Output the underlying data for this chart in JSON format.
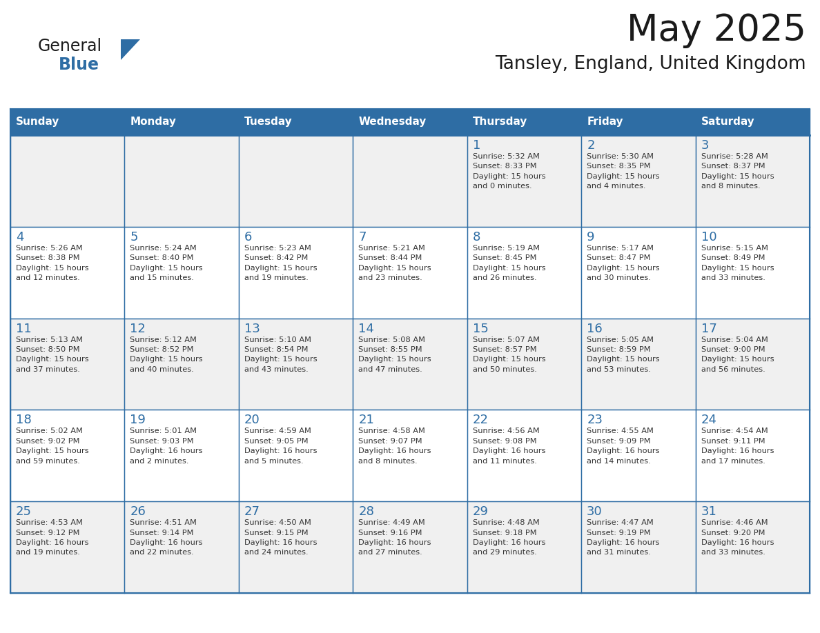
{
  "title": "May 2025",
  "subtitle": "Tansley, England, United Kingdom",
  "days_of_week": [
    "Sunday",
    "Monday",
    "Tuesday",
    "Wednesday",
    "Thursday",
    "Friday",
    "Saturday"
  ],
  "header_bg": "#2E6DA4",
  "header_text_color": "#FFFFFF",
  "cell_bg_odd": "#F0F0F0",
  "cell_bg_even": "#FFFFFF",
  "cell_text_color": "#333333",
  "day_num_color": "#2E6DA4",
  "grid_color": "#2E6DA4",
  "logo_general_color": "#1a1a1a",
  "logo_blue_color": "#2E6DA4",
  "title_color": "#1a1a1a",
  "subtitle_color": "#1a1a1a",
  "weeks": [
    [
      {
        "day": null,
        "info": null
      },
      {
        "day": null,
        "info": null
      },
      {
        "day": null,
        "info": null
      },
      {
        "day": null,
        "info": null
      },
      {
        "day": 1,
        "info": "Sunrise: 5:32 AM\nSunset: 8:33 PM\nDaylight: 15 hours\nand 0 minutes."
      },
      {
        "day": 2,
        "info": "Sunrise: 5:30 AM\nSunset: 8:35 PM\nDaylight: 15 hours\nand 4 minutes."
      },
      {
        "day": 3,
        "info": "Sunrise: 5:28 AM\nSunset: 8:37 PM\nDaylight: 15 hours\nand 8 minutes."
      }
    ],
    [
      {
        "day": 4,
        "info": "Sunrise: 5:26 AM\nSunset: 8:38 PM\nDaylight: 15 hours\nand 12 minutes."
      },
      {
        "day": 5,
        "info": "Sunrise: 5:24 AM\nSunset: 8:40 PM\nDaylight: 15 hours\nand 15 minutes."
      },
      {
        "day": 6,
        "info": "Sunrise: 5:23 AM\nSunset: 8:42 PM\nDaylight: 15 hours\nand 19 minutes."
      },
      {
        "day": 7,
        "info": "Sunrise: 5:21 AM\nSunset: 8:44 PM\nDaylight: 15 hours\nand 23 minutes."
      },
      {
        "day": 8,
        "info": "Sunrise: 5:19 AM\nSunset: 8:45 PM\nDaylight: 15 hours\nand 26 minutes."
      },
      {
        "day": 9,
        "info": "Sunrise: 5:17 AM\nSunset: 8:47 PM\nDaylight: 15 hours\nand 30 minutes."
      },
      {
        "day": 10,
        "info": "Sunrise: 5:15 AM\nSunset: 8:49 PM\nDaylight: 15 hours\nand 33 minutes."
      }
    ],
    [
      {
        "day": 11,
        "info": "Sunrise: 5:13 AM\nSunset: 8:50 PM\nDaylight: 15 hours\nand 37 minutes."
      },
      {
        "day": 12,
        "info": "Sunrise: 5:12 AM\nSunset: 8:52 PM\nDaylight: 15 hours\nand 40 minutes."
      },
      {
        "day": 13,
        "info": "Sunrise: 5:10 AM\nSunset: 8:54 PM\nDaylight: 15 hours\nand 43 minutes."
      },
      {
        "day": 14,
        "info": "Sunrise: 5:08 AM\nSunset: 8:55 PM\nDaylight: 15 hours\nand 47 minutes."
      },
      {
        "day": 15,
        "info": "Sunrise: 5:07 AM\nSunset: 8:57 PM\nDaylight: 15 hours\nand 50 minutes."
      },
      {
        "day": 16,
        "info": "Sunrise: 5:05 AM\nSunset: 8:59 PM\nDaylight: 15 hours\nand 53 minutes."
      },
      {
        "day": 17,
        "info": "Sunrise: 5:04 AM\nSunset: 9:00 PM\nDaylight: 15 hours\nand 56 minutes."
      }
    ],
    [
      {
        "day": 18,
        "info": "Sunrise: 5:02 AM\nSunset: 9:02 PM\nDaylight: 15 hours\nand 59 minutes."
      },
      {
        "day": 19,
        "info": "Sunrise: 5:01 AM\nSunset: 9:03 PM\nDaylight: 16 hours\nand 2 minutes."
      },
      {
        "day": 20,
        "info": "Sunrise: 4:59 AM\nSunset: 9:05 PM\nDaylight: 16 hours\nand 5 minutes."
      },
      {
        "day": 21,
        "info": "Sunrise: 4:58 AM\nSunset: 9:07 PM\nDaylight: 16 hours\nand 8 minutes."
      },
      {
        "day": 22,
        "info": "Sunrise: 4:56 AM\nSunset: 9:08 PM\nDaylight: 16 hours\nand 11 minutes."
      },
      {
        "day": 23,
        "info": "Sunrise: 4:55 AM\nSunset: 9:09 PM\nDaylight: 16 hours\nand 14 minutes."
      },
      {
        "day": 24,
        "info": "Sunrise: 4:54 AM\nSunset: 9:11 PM\nDaylight: 16 hours\nand 17 minutes."
      }
    ],
    [
      {
        "day": 25,
        "info": "Sunrise: 4:53 AM\nSunset: 9:12 PM\nDaylight: 16 hours\nand 19 minutes."
      },
      {
        "day": 26,
        "info": "Sunrise: 4:51 AM\nSunset: 9:14 PM\nDaylight: 16 hours\nand 22 minutes."
      },
      {
        "day": 27,
        "info": "Sunrise: 4:50 AM\nSunset: 9:15 PM\nDaylight: 16 hours\nand 24 minutes."
      },
      {
        "day": 28,
        "info": "Sunrise: 4:49 AM\nSunset: 9:16 PM\nDaylight: 16 hours\nand 27 minutes."
      },
      {
        "day": 29,
        "info": "Sunrise: 4:48 AM\nSunset: 9:18 PM\nDaylight: 16 hours\nand 29 minutes."
      },
      {
        "day": 30,
        "info": "Sunrise: 4:47 AM\nSunset: 9:19 PM\nDaylight: 16 hours\nand 31 minutes."
      },
      {
        "day": 31,
        "info": "Sunrise: 4:46 AM\nSunset: 9:20 PM\nDaylight: 16 hours\nand 33 minutes."
      }
    ]
  ]
}
